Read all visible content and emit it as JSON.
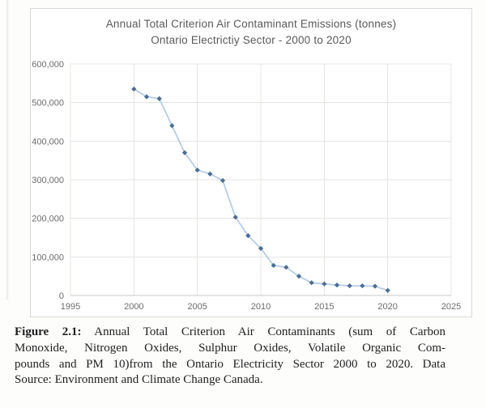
{
  "chart": {
    "colors": {
      "line": "#b4cde8",
      "marker": "#4a6d94",
      "grid": "#e4e4e2",
      "axis": "#c8c8c6",
      "text": "#6b6b6b",
      "border": "#d8d8d6"
    }
  },
  "chart_data": {
    "type": "line",
    "title": "Annual Total Criterion Air Contaminant Emissions (tonnes)",
    "subtitle": "Ontario Electrictiy Sector - 2000 to 2020",
    "xlabel": "",
    "ylabel": "",
    "grid": true,
    "legend": false,
    "marker": "diamond",
    "xlim": [
      1995,
      2025
    ],
    "ylim": [
      0,
      600000
    ],
    "x": [
      2000,
      2001,
      2002,
      2003,
      2004,
      2005,
      2006,
      2007,
      2008,
      2009,
      2010,
      2011,
      2012,
      2013,
      2014,
      2015,
      2016,
      2017,
      2018,
      2019,
      2020
    ],
    "values": [
      535000,
      515000,
      510000,
      440000,
      370000,
      325000,
      315000,
      298000,
      203000,
      155000,
      122000,
      78000,
      73000,
      50000,
      33000,
      30000,
      27000,
      25000,
      25000,
      24000,
      13000
    ],
    "x_ticks": [
      {
        "value": 1995,
        "label": "1995"
      },
      {
        "value": 2000,
        "label": "2000"
      },
      {
        "value": 2005,
        "label": "2005"
      },
      {
        "value": 2010,
        "label": "2010"
      },
      {
        "value": 2015,
        "label": "2015"
      },
      {
        "value": 2020,
        "label": "2020"
      },
      {
        "value": 2025,
        "label": "2025"
      }
    ],
    "y_ticks": [
      {
        "value": 0,
        "label": "0"
      },
      {
        "value": 100000,
        "label": "100,000"
      },
      {
        "value": 200000,
        "label": "200,000"
      },
      {
        "value": 300000,
        "label": "300,000"
      },
      {
        "value": 400000,
        "label": "400,000"
      },
      {
        "value": 500000,
        "label": "500,000"
      },
      {
        "value": 600000,
        "label": "600,000"
      }
    ]
  },
  "caption": {
    "line1_bold": "Figure 2.1:",
    "line1_rest": " Annual Total Criterion Air Contaminants (sum of Carbon",
    "line2": "Monoxide, Nitrogen Oxides, Sulphur Oxides, Volatile Organic Com-",
    "line3": "pounds and PM 10)from the Ontario Electricity Sector 2000 to 2020. Data",
    "line4": "Source: Environment and Climate Change Canada."
  }
}
